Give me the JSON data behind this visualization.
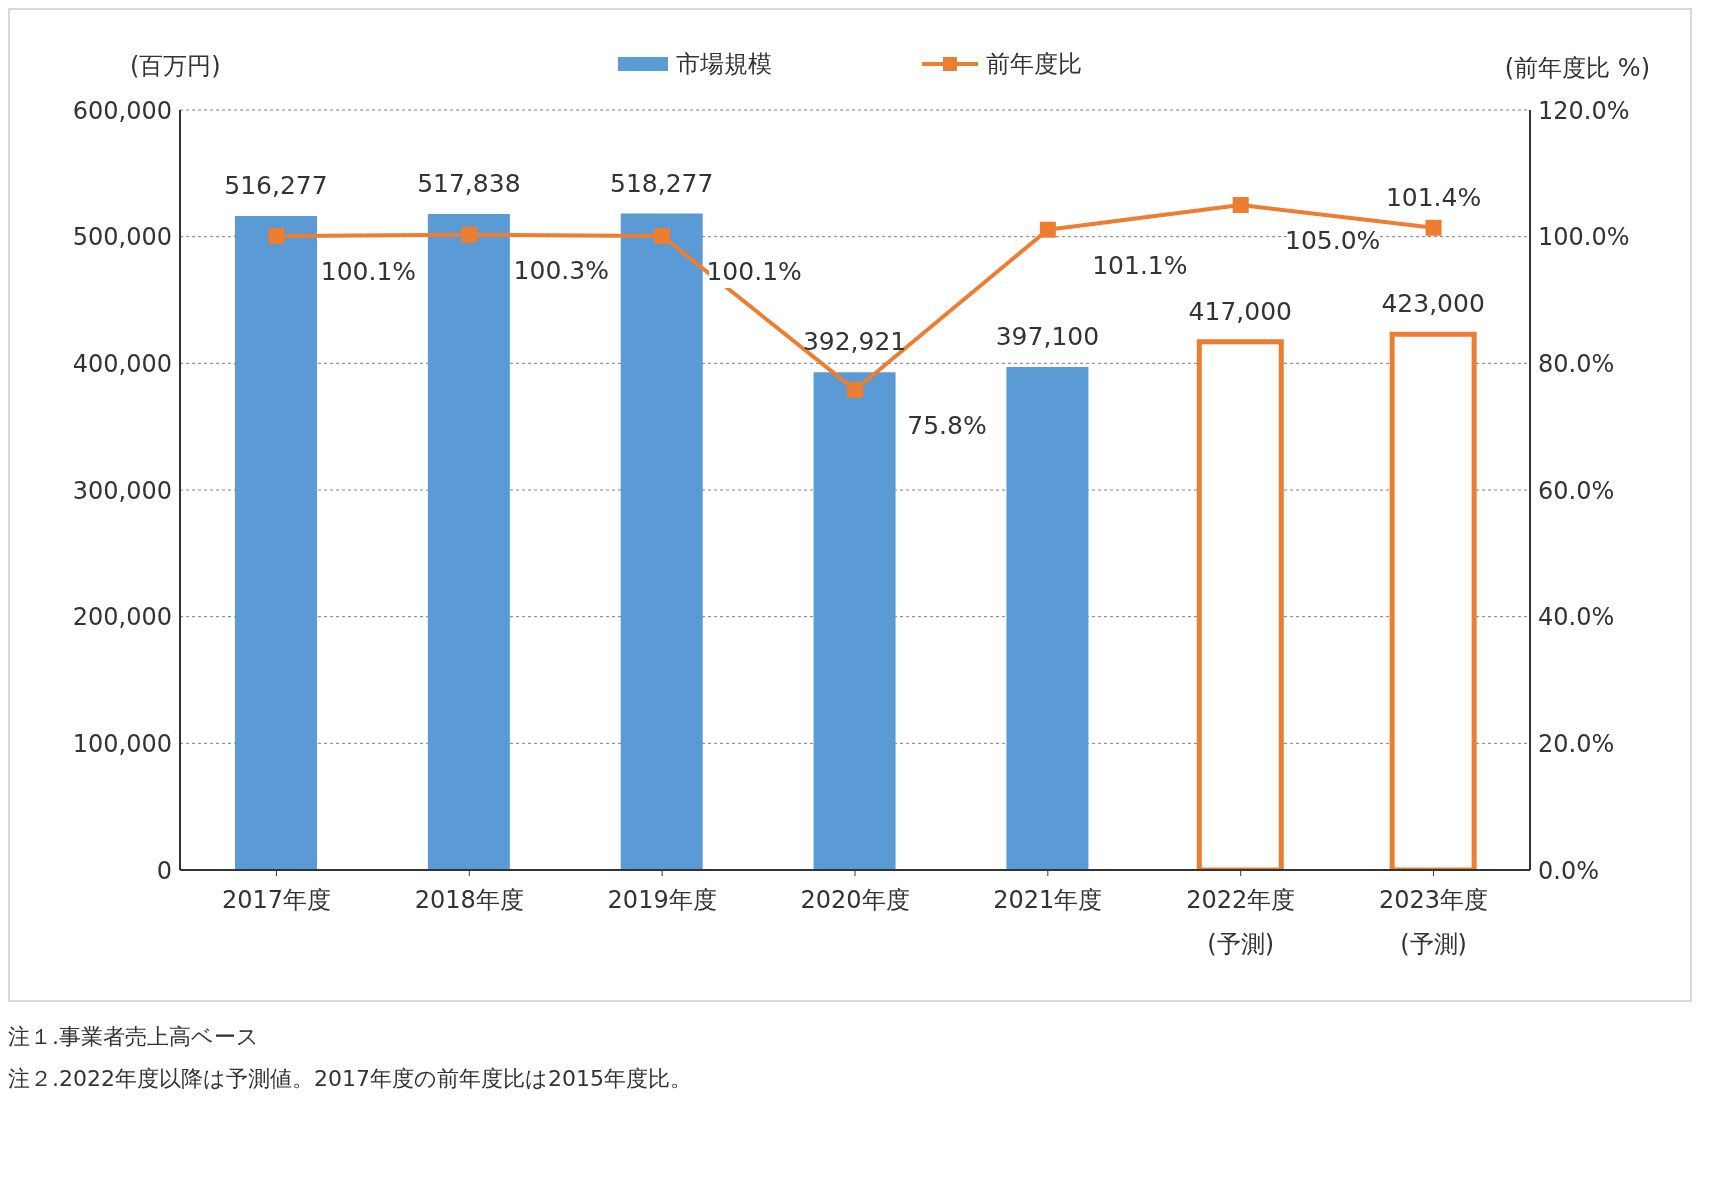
{
  "chart_data": {
    "type": "bar",
    "ylabel": "(百万円)",
    "y2label": "(前年度比 %)",
    "categories": [
      "2017年度",
      "2018年度",
      "2019年度",
      "2020年度",
      "2021年度",
      "2022年度\n(予測)",
      "2023年度\n(予測)"
    ],
    "series": [
      {
        "name": "市場規模",
        "color": "#5b9bd5",
        "colors": [
          "#5b9bd5",
          "#5b9bd5",
          "#5b9bd5",
          "#5b9bd5",
          "#5b9bd5",
          "#ed7d31",
          "#ed7d31"
        ],
        "values": [
          516277,
          517838,
          518277,
          392921,
          397100,
          417000,
          423000
        ],
        "value_labels": [
          "516,277",
          "517,838",
          "518,277",
          "392,921",
          "397,100",
          "417,000",
          "423,000"
        ]
      },
      {
        "name": "前年度比",
        "type": "line",
        "axis": "y2",
        "color": "#ed7d31",
        "marker": "square",
        "values": [
          100.1,
          100.3,
          100.1,
          75.8,
          101.1,
          105.0,
          101.4
        ],
        "value_labels": [
          "100.1%",
          "100.3%",
          "100.1%",
          "75.8%",
          "101.1%",
          "105.0%",
          "101.4%"
        ]
      }
    ],
    "ylim": [
      0,
      600000
    ],
    "yticks": [
      {
        "value": 0,
        "label": "0"
      },
      {
        "value": 100000,
        "label": "100,000"
      },
      {
        "value": 200000,
        "label": "200,000"
      },
      {
        "value": 300000,
        "label": "300,000"
      },
      {
        "value": 400000,
        "label": "400,000"
      },
      {
        "value": 500000,
        "label": "500,000"
      },
      {
        "value": 600000,
        "label": "600,000"
      }
    ],
    "y2lim": [
      0,
      120
    ],
    "y2ticks": [
      {
        "value": 0,
        "label": "0.0%"
      },
      {
        "value": 20,
        "label": "20.0%"
      },
      {
        "value": 40,
        "label": "40.0%"
      },
      {
        "value": 60,
        "label": "60.0%"
      },
      {
        "value": 80,
        "label": "80.0%"
      },
      {
        "value": 100,
        "label": "100.0%"
      },
      {
        "value": 120,
        "label": "120.0%"
      }
    ],
    "grid": "y",
    "legend": "top",
    "annotations": [
      "注１.事業者売上高ベース",
      "注２.2022年度以降は予測値。2017年度の前年度比は2015年度比。"
    ]
  }
}
